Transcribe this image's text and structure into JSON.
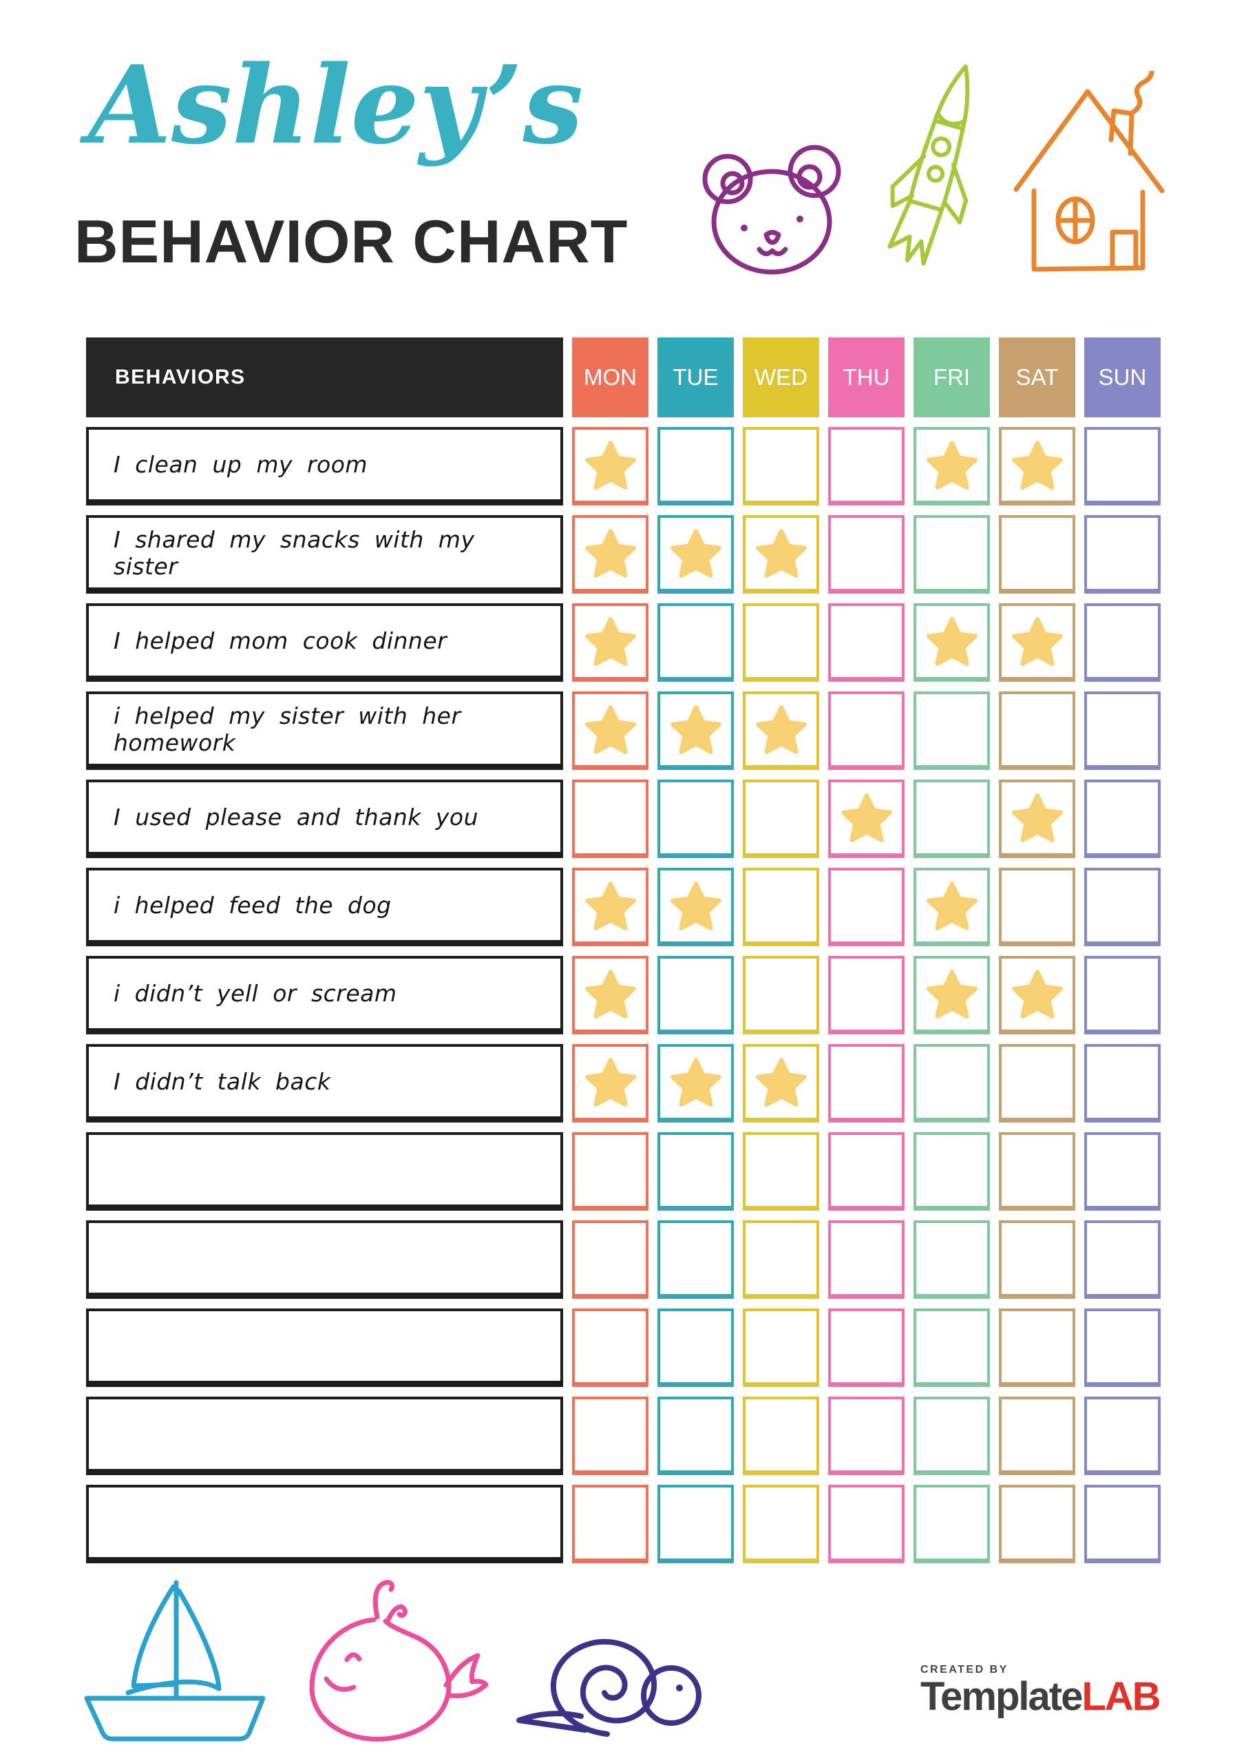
{
  "header": {
    "name": "Ashley’s",
    "title": "BEHAVIOR CHART"
  },
  "colors": {
    "title_script": "#3ab1c3",
    "title_sub": "#2b2b2b",
    "header_bg": "#262626",
    "star": "#f8d174",
    "bear": "#8b2e86",
    "rocket": "#a5c93a",
    "house": "#e8862f",
    "sailboat": "#2aa2cf",
    "whale": "#e84f9d",
    "snail": "#3b3387",
    "brand_text": "#3f3f3f",
    "brand_accent": "#e0312b"
  },
  "table": {
    "behaviors_header": "BEHAVIORS",
    "days": [
      {
        "label": "MON",
        "color": "#ee7157"
      },
      {
        "label": "TUE",
        "color": "#2fa9ba"
      },
      {
        "label": "WED",
        "color": "#dfc62f"
      },
      {
        "label": "THU",
        "color": "#f06fae"
      },
      {
        "label": "FRI",
        "color": "#7fc99c"
      },
      {
        "label": "SAT",
        "color": "#c8a06e"
      },
      {
        "label": "SUN",
        "color": "#8687c5"
      }
    ],
    "rows": [
      {
        "behavior": "I clean up my room",
        "stars": [
          1,
          0,
          0,
          0,
          1,
          1,
          0
        ]
      },
      {
        "behavior": "I shared my snacks with my sister",
        "stars": [
          1,
          1,
          1,
          0,
          0,
          0,
          0
        ]
      },
      {
        "behavior": "I helped mom cook dinner",
        "stars": [
          1,
          0,
          0,
          0,
          1,
          1,
          0
        ]
      },
      {
        "behavior": "i helped my sister with her homework",
        "stars": [
          1,
          1,
          1,
          0,
          0,
          0,
          0
        ]
      },
      {
        "behavior": "I used please and thank you",
        "stars": [
          0,
          0,
          0,
          1,
          0,
          1,
          0
        ]
      },
      {
        "behavior": "i helped feed the dog",
        "stars": [
          1,
          1,
          0,
          0,
          1,
          0,
          0
        ]
      },
      {
        "behavior": "i didn’t yell or scream",
        "stars": [
          1,
          0,
          0,
          0,
          1,
          1,
          0
        ]
      },
      {
        "behavior": "I didn’t talk back",
        "stars": [
          1,
          1,
          1,
          0,
          0,
          0,
          0
        ]
      },
      {
        "behavior": "",
        "stars": [
          0,
          0,
          0,
          0,
          0,
          0,
          0
        ]
      },
      {
        "behavior": "",
        "stars": [
          0,
          0,
          0,
          0,
          0,
          0,
          0
        ]
      },
      {
        "behavior": "",
        "stars": [
          0,
          0,
          0,
          0,
          0,
          0,
          0
        ]
      },
      {
        "behavior": "",
        "stars": [
          0,
          0,
          0,
          0,
          0,
          0,
          0
        ]
      },
      {
        "behavior": "",
        "stars": [
          0,
          0,
          0,
          0,
          0,
          0,
          0
        ]
      }
    ]
  },
  "icons": {
    "top": [
      "bear-icon",
      "rocket-icon",
      "house-icon"
    ],
    "bottom": [
      "sailboat-icon",
      "whale-icon",
      "snail-icon"
    ],
    "cell_marker": "star-icon"
  },
  "footer": {
    "created_by": "CREATED BY",
    "brand_main": "Template",
    "brand_accent": "LAB"
  }
}
